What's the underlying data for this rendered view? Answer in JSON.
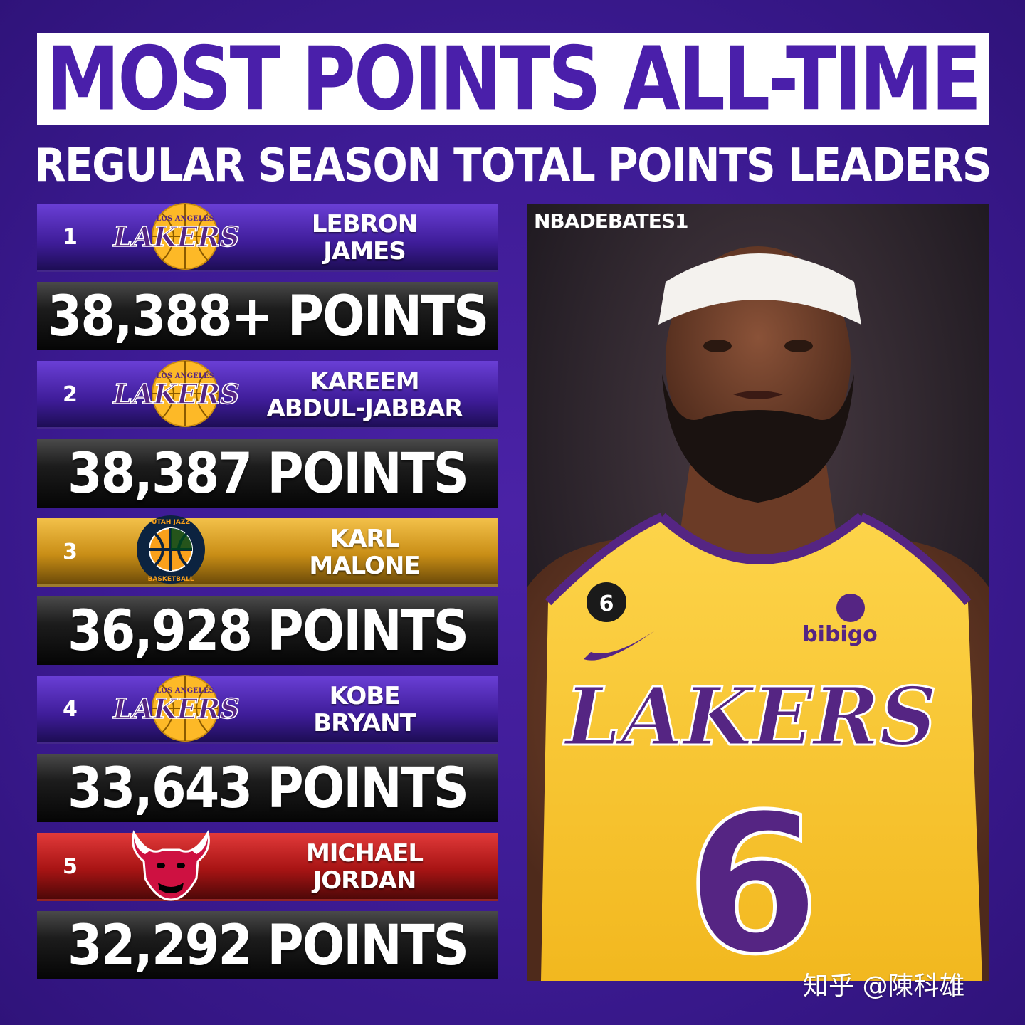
{
  "header": {
    "title": "MOST POINTS ALL-TIME",
    "subtitle": "REGULAR SEASON TOTAL POINTS LEADERS"
  },
  "leaders": [
    {
      "rank": "1",
      "name_line1": "LEBRON",
      "name_line2": "JAMES",
      "points": "38,388+ POINTS",
      "team_logo": "lakers-logo",
      "logo_text_top": "LOS ANGELES",
      "logo_text": "LAKERS",
      "bar_color": "#3e1c98"
    },
    {
      "rank": "2",
      "name_line1": "KAREEM",
      "name_line2": "ABDUL-JABBAR",
      "points": "38,387 POINTS",
      "team_logo": "lakers-logo",
      "logo_text_top": "LOS ANGELES",
      "logo_text": "LAKERS",
      "bar_color": "#3e1c98"
    },
    {
      "rank": "3",
      "name_line1": "KARL",
      "name_line2": "MALONE",
      "points": "36,928 POINTS",
      "team_logo": "jazz-logo",
      "logo_text_top": "UTAH JAZZ",
      "logo_text": "BASKETBALL",
      "bar_color": "#c98e16"
    },
    {
      "rank": "4",
      "name_line1": "KOBE",
      "name_line2": "BRYANT",
      "points": "33,643 POINTS",
      "team_logo": "lakers-logo",
      "logo_text_top": "LOS ANGELES",
      "logo_text": "LAKERS",
      "bar_color": "#3e1c98"
    },
    {
      "rank": "5",
      "name_line1": "MICHAEL",
      "name_line2": "JORDAN",
      "points": "32,292 POINTS",
      "team_logo": "bulls-logo",
      "logo_text_top": "",
      "logo_text": "",
      "bar_color": "#a81414"
    }
  ],
  "photo": {
    "credit": "NBADEBATES1",
    "jersey_text": "LAKERS",
    "jersey_number": "6",
    "sponsor": "bibigo",
    "patch_number": "6"
  },
  "footer": {
    "watermark": "知乎 @陳科雄"
  },
  "colors": {
    "background": "#3d1b94",
    "title_text": "#4a1faa",
    "lakers_purple": "#552583",
    "lakers_gold": "#fdb927",
    "jazz_navy": "#002b5c",
    "bulls_red": "#ce1141"
  }
}
